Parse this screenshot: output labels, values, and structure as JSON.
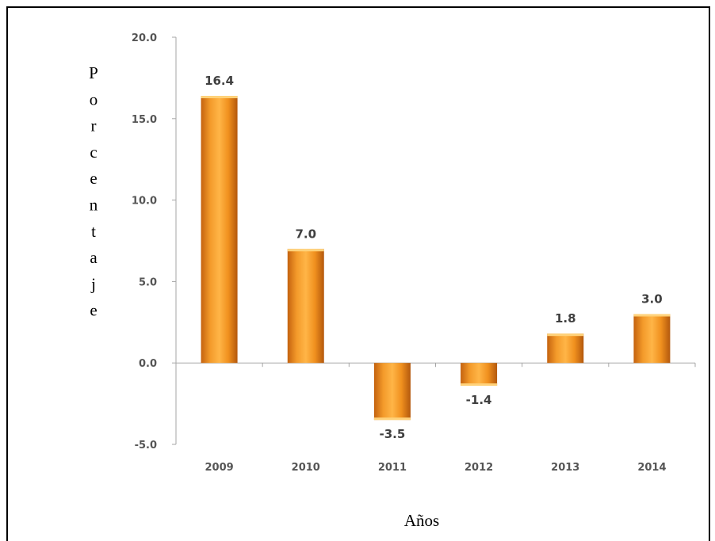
{
  "chart_data": {
    "type": "bar",
    "categories": [
      "2009",
      "2010",
      "2011",
      "2012",
      "2013",
      "2014"
    ],
    "values": [
      16.4,
      7.0,
      -3.5,
      -1.4,
      1.8,
      3.0
    ],
    "data_labels": [
      "16.4",
      "7.0",
      "-3.5",
      "-1.4",
      "1.8",
      "3.0"
    ],
    "xlabel": "Años",
    "ylabel": "Porcentaje",
    "ylim": [
      -5,
      20
    ],
    "yticks": [
      20,
      15,
      10,
      5,
      0,
      -5
    ],
    "ytick_labels": [
      "20.0",
      "15.0",
      "10.0",
      "5.0",
      "0.0",
      "-5.0"
    ],
    "grid": false,
    "legend": "none",
    "colors": {
      "bar_main": "#f0901e",
      "bar_light": "#ffd27a",
      "bar_dark": "#b3580d",
      "negative_tick": "#d9211c",
      "axis": "#a6a6a6"
    }
  }
}
